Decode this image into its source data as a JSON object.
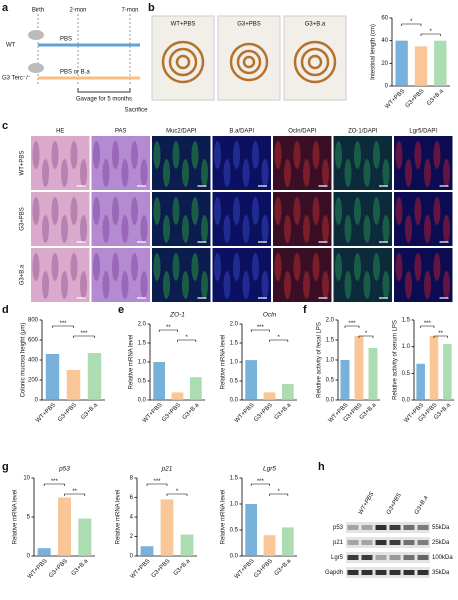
{
  "panel_letters": [
    "a",
    "b",
    "c",
    "d",
    "e",
    "f",
    "g",
    "h"
  ],
  "schematic": {
    "timepoints": [
      "Birth",
      "2-mon",
      "7-mon"
    ],
    "groups": [
      "WT",
      "G3 Terc⁻/⁻"
    ],
    "treatments": [
      "PBS",
      "PBS or B.a"
    ],
    "gavage": "Gavage for 5 months",
    "end": "Sacrifice"
  },
  "photos": {
    "labels": [
      "WT+PBS",
      "G3+PBS",
      "G3+B.a"
    ]
  },
  "micrographs": {
    "columns": [
      "HE",
      "PAS",
      "Muc2/DAPI",
      "B.a/DAPI",
      "Ocln/DAPI",
      "ZO-1/DAPI",
      "Lgr5/DAPI"
    ],
    "rows": [
      "WT+PBS",
      "G3+PBS",
      "G3+B.a"
    ]
  },
  "blot": {
    "samples": [
      "WT+PBS",
      "G3+PBS",
      "G3+B.a"
    ],
    "proteins": [
      "p53",
      "p21",
      "Lgr5",
      "Gapdh"
    ],
    "sizes": [
      "55kDa",
      "25kDa",
      "100kDa",
      "35kDa"
    ]
  },
  "chart_data": [
    {
      "type": "bar",
      "y_label": "Intestinal length (cm)",
      "categories": [
        "WT+PBS",
        "G3+PBS",
        "G3+B.a"
      ],
      "values": [
        40,
        35,
        40
      ],
      "colors": [
        "#5fa3d6",
        "#f8bd85",
        "#9dd6a3"
      ],
      "ylim": [
        0,
        60
      ],
      "yticks": [
        0,
        20,
        40,
        60
      ],
      "annotations": [
        "*",
        "*"
      ]
    },
    {
      "type": "bar",
      "y_label": "Colonic mucosa height (μm)",
      "categories": [
        "WT+PBS",
        "G3+PBS",
        "G3+B.a"
      ],
      "values": [
        460,
        300,
        470
      ],
      "colors": [
        "#5fa3d6",
        "#f8bd85",
        "#9dd6a3"
      ],
      "ylim": [
        0,
        800
      ],
      "yticks": [
        0,
        200,
        400,
        600,
        800
      ],
      "annotations": [
        "***",
        "***"
      ]
    },
    {
      "type": "bar",
      "title": "ZO-1",
      "y_label": "Relative mRNA level",
      "categories": [
        "WT+PBS",
        "G3+PBS",
        "G3+B.a"
      ],
      "values": [
        1.0,
        0.2,
        0.6
      ],
      "colors": [
        "#5fa3d6",
        "#f8bd85",
        "#9dd6a3"
      ],
      "ylim": [
        0,
        2
      ],
      "yticks": [
        {
          "value": 0,
          "label": "0.0"
        },
        0.5,
        {
          "value": 1,
          "label": "1.0"
        },
        1.5,
        {
          "value": 2,
          "label": "2.0"
        }
      ],
      "annotations": [
        "**",
        "*"
      ]
    },
    {
      "type": "bar",
      "title": "Ocln",
      "y_label": "Relative mRNA level",
      "categories": [
        "WT+PBS",
        "G3+PBS",
        "G3+B.a"
      ],
      "values": [
        1.05,
        0.2,
        0.42
      ],
      "colors": [
        "#5fa3d6",
        "#f8bd85",
        "#9dd6a3"
      ],
      "ylim": [
        0,
        2
      ],
      "yticks": [
        {
          "value": 0,
          "label": "0.0"
        },
        0.5,
        {
          "value": 1,
          "label": "1.0"
        },
        1.5,
        {
          "value": 2,
          "label": "2.0"
        }
      ],
      "annotations": [
        "***",
        "*"
      ]
    },
    {
      "type": "bar",
      "y_label": "Relative activity of fecal LPS",
      "categories": [
        "WT+PBS",
        "G3+PBS",
        "G3+B.a"
      ],
      "values": [
        1.0,
        1.6,
        1.3
      ],
      "colors": [
        "#5fa3d6",
        "#f8bd85",
        "#9dd6a3"
      ],
      "ylim": [
        0,
        2
      ],
      "yticks": [
        {
          "value": 0,
          "label": "0.0"
        },
        0.5,
        {
          "value": 1,
          "label": "1.0"
        },
        1.5,
        {
          "value": 2,
          "label": "2.0"
        }
      ],
      "annotations": [
        "***",
        "*"
      ]
    },
    {
      "type": "bar",
      "y_label": "Relative activity of serum LPS",
      "categories": [
        "WT+PBS",
        "G3+PBS",
        "G3+B.a"
      ],
      "values": [
        0.68,
        1.2,
        1.05
      ],
      "colors": [
        "#5fa3d6",
        "#f8bd85",
        "#9dd6a3"
      ],
      "ylim": [
        0,
        1.5
      ],
      "yticks": [
        {
          "value": 0,
          "label": "0.0"
        },
        0.5,
        {
          "value": 1,
          "label": "1.0"
        },
        1.5
      ],
      "annotations": [
        "***",
        "**"
      ]
    },
    {
      "type": "bar",
      "title": "p53",
      "y_label": "Relative mRNA level",
      "categories": [
        "WT+PBS",
        "G3+PBS",
        "G3+B.a"
      ],
      "values": [
        1.0,
        7.5,
        4.8
      ],
      "colors": [
        "#5fa3d6",
        "#f8bd85",
        "#9dd6a3"
      ],
      "ylim": [
        0,
        10
      ],
      "yticks": [
        0,
        5,
        10
      ],
      "annotations": [
        "***",
        "**"
      ]
    },
    {
      "type": "bar",
      "title": "p21",
      "y_label": "Relative mRNA level",
      "categories": [
        "WT+PBS",
        "G3+PBS",
        "G3+B.a"
      ],
      "values": [
        1.0,
        5.8,
        2.2
      ],
      "colors": [
        "#5fa3d6",
        "#f8bd85",
        "#9dd6a3"
      ],
      "ylim": [
        0,
        8
      ],
      "yticks": [
        0,
        2,
        4,
        6,
        8
      ],
      "annotations": [
        "***",
        "*"
      ]
    },
    {
      "type": "bar",
      "title": "Lgr5",
      "y_label": "Relative mRNA level",
      "categories": [
        "WT+PBS",
        "G3+PBS",
        "G3+B.a"
      ],
      "values": [
        1.0,
        0.4,
        0.55
      ],
      "colors": [
        "#5fa3d6",
        "#f8bd85",
        "#9dd6a3"
      ],
      "ylim": [
        0,
        1.5
      ],
      "yticks": [
        {
          "value": 0,
          "label": "0.0"
        },
        0.5,
        {
          "value": 1,
          "label": "1.0"
        },
        1.5
      ],
      "annotations": [
        "***",
        "*"
      ]
    }
  ]
}
